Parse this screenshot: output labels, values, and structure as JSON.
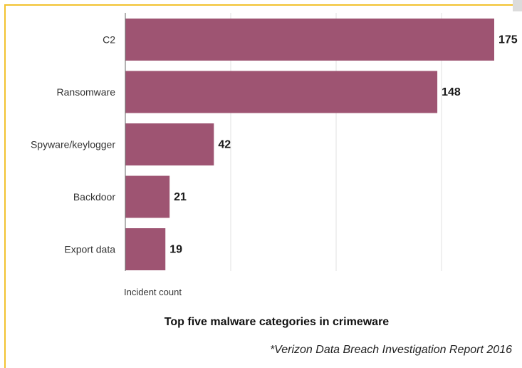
{
  "chart_data": {
    "type": "bar",
    "orientation": "horizontal",
    "categories": [
      "C2",
      "Ransomware",
      "Spyware/keylogger",
      "Backdoor",
      "Export data"
    ],
    "values": [
      175,
      148,
      42,
      21,
      19
    ],
    "xlabel": "Incident count",
    "xlim": [
      0,
      175
    ],
    "grid": true,
    "data_labels": true,
    "bar_color": "#9e5472"
  },
  "caption": "Top five malware categories in crimeware",
  "source": "*Verizon Data Breach Investigation Report 2016",
  "colors": {
    "frame": "#f2c230",
    "bar": "#9e5472",
    "grid": "#e2e2e2",
    "axis": "#666666"
  }
}
